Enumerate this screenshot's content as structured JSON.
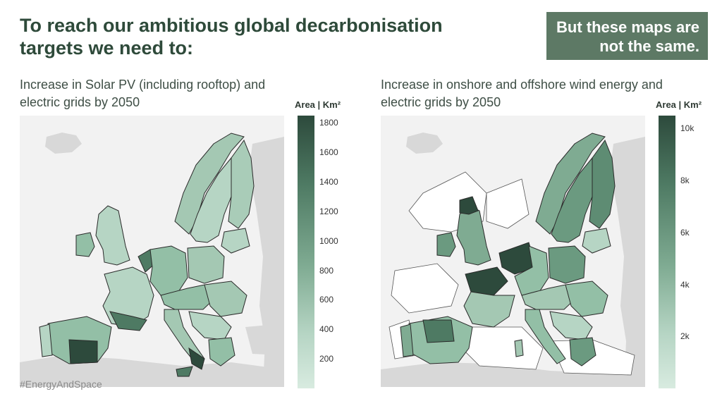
{
  "headline": "To reach our ambitious global decarbonisation targets we need to:",
  "callout": {
    "line1": "But these maps are",
    "line2": "not the same."
  },
  "left_panel": {
    "subtitle": "Increase in Solar PV (including rooftop) and electric grids by 2050",
    "legend": {
      "title": "Area | Km²",
      "min": 0,
      "max": 1850,
      "ticks": [
        {
          "label": "1800",
          "value": 1800
        },
        {
          "label": "1600",
          "value": 1600
        },
        {
          "label": "1400",
          "value": 1400
        },
        {
          "label": "1200",
          "value": 1200
        },
        {
          "label": "1000",
          "value": 1000
        },
        {
          "label": "800",
          "value": 800
        },
        {
          "label": "600",
          "value": 600
        },
        {
          "label": "400",
          "value": 400
        },
        {
          "label": "200",
          "value": 200
        }
      ]
    }
  },
  "right_panel": {
    "subtitle": "Increase in onshore and offshore wind energy and electric grids by 2050",
    "legend": {
      "title": "Area | Km²",
      "min": 0,
      "max": 10500,
      "ticks": [
        {
          "label": "10k",
          "value": 10000
        },
        {
          "label": "8k",
          "value": 8000
        },
        {
          "label": "6k",
          "value": 6000
        },
        {
          "label": "4k",
          "value": 4000
        },
        {
          "label": "2k",
          "value": 2000
        }
      ]
    }
  },
  "hashtag": "#EnergyAndSpace",
  "colors": {
    "dark": "#2d4a3c",
    "mid": "#6b9a80",
    "light": "#cfe5d8",
    "land_outside": "#d8d8d8",
    "sea": "#f2f2f2",
    "callout_bg": "#5d7965"
  }
}
